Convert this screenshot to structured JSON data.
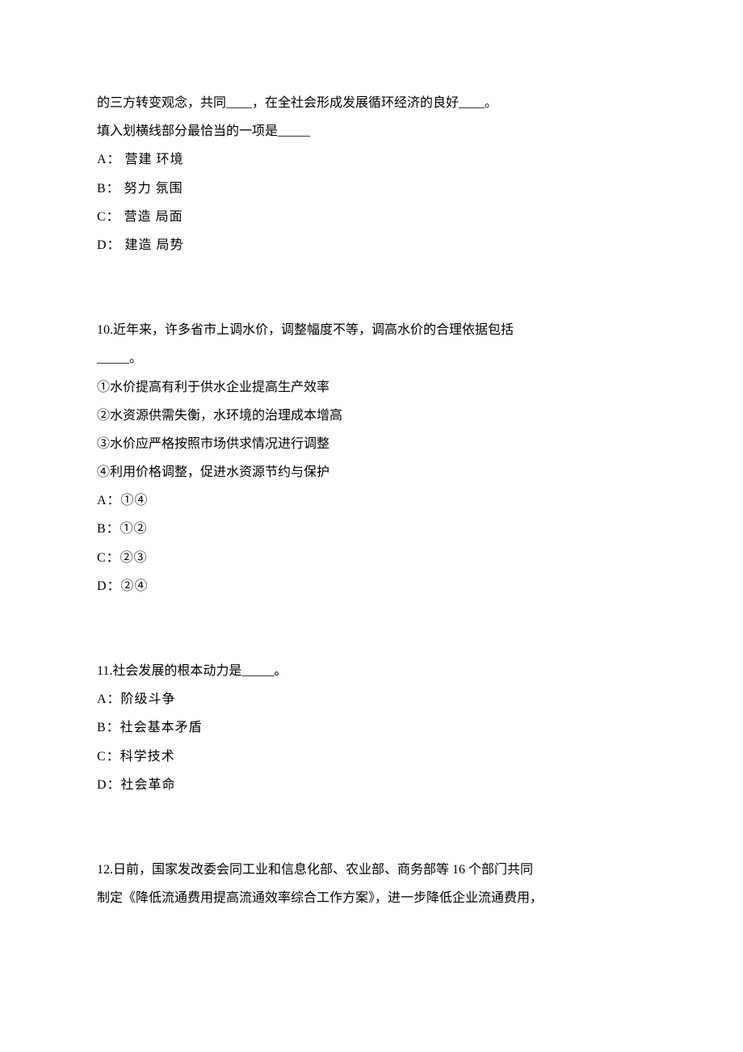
{
  "q9_partial": {
    "line1": "的三方转变观念，共同____，在全社会形成发展循环经济的良好____。",
    "line2": "填入划横线部分最恰当的一项是_____",
    "options": [
      "A：  营建  环境",
      "B：  努力  氛围",
      "C：  营造  局面",
      "D：  建造  局势"
    ]
  },
  "q10": {
    "line1": "10.近年来，许多省市上调水价，调整幅度不等，调高水价的合理依据包括",
    "line2": "_____。",
    "statements": [
      "①水价提高有利于供水企业提高生产效率",
      "②水资源供需失衡，水环境的治理成本增高",
      "③水价应严格按照市场供求情况进行调整",
      "④利用价格调整，促进水资源节约与保护"
    ],
    "options": [
      "A：①④",
      "B：①②",
      "C：②③",
      "D：②④"
    ]
  },
  "q11": {
    "line1": "11.社会发展的根本动力是_____。",
    "options": [
      "A：阶级斗争",
      "B：社会基本矛盾",
      "C：科学技术",
      "D：社会革命"
    ]
  },
  "q12": {
    "line1": "12.日前，国家发改委会同工业和信息化部、农业部、商务部等 16 个部门共同",
    "line2": "制定《降低流通费用提高流通效率综合工作方案》，进一步降低企业流通费用，"
  }
}
